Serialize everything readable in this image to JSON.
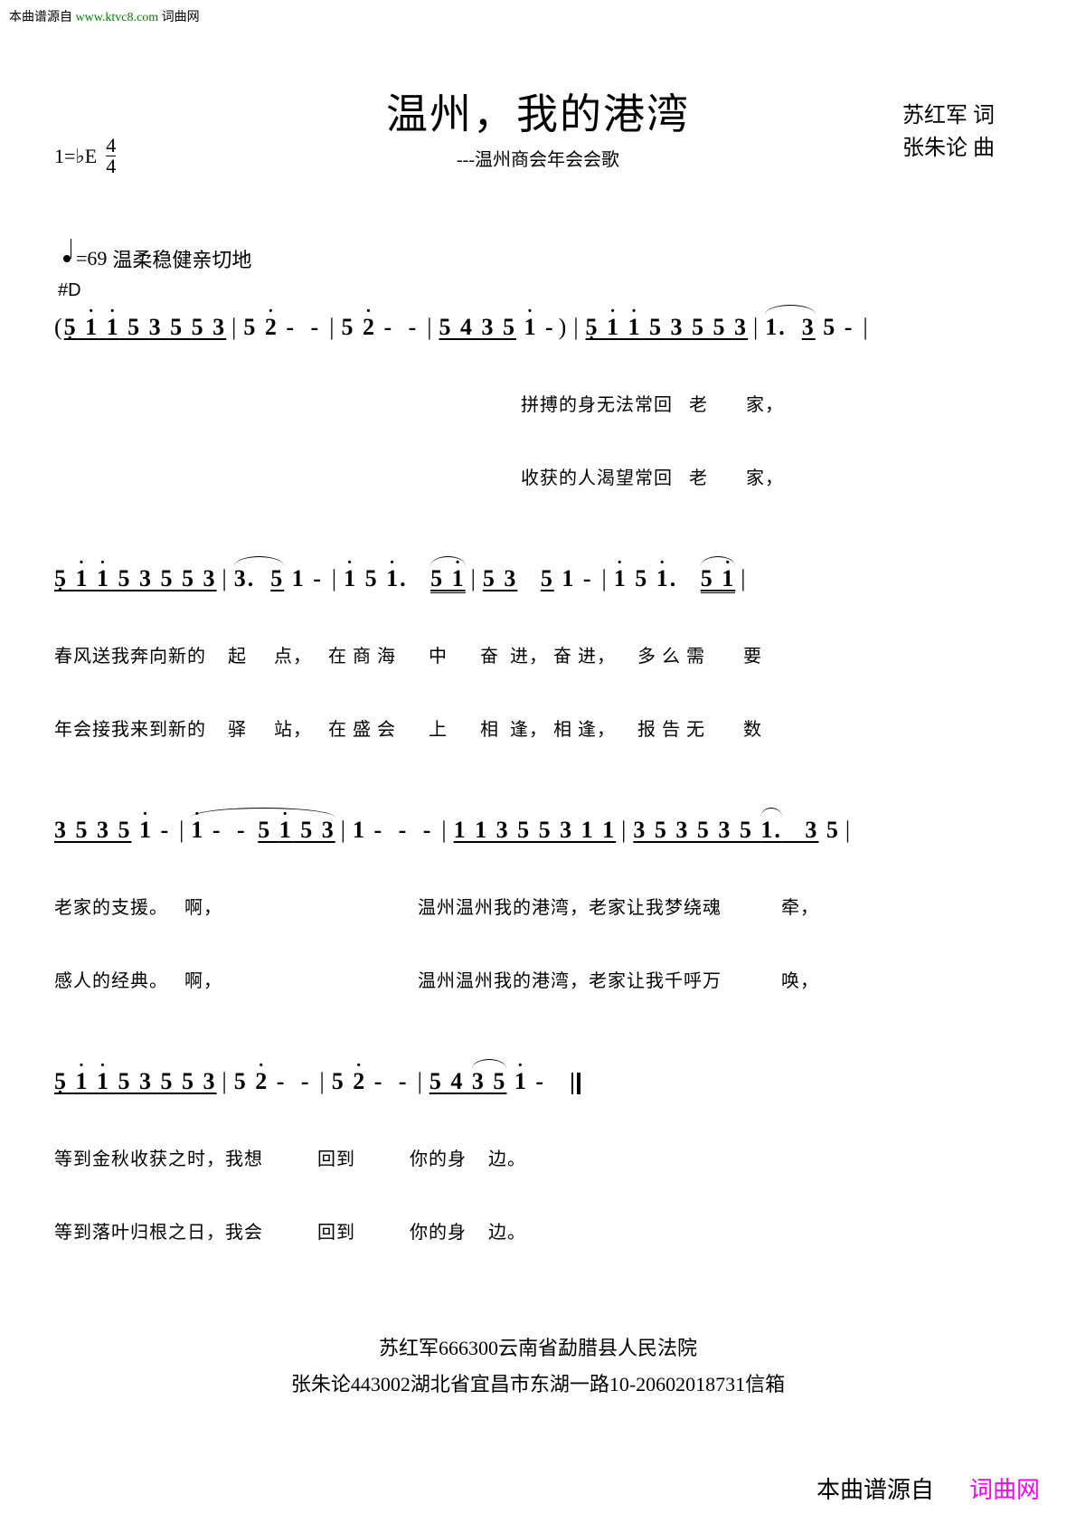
{
  "watermark_top": {
    "prefix": "本曲谱源自 ",
    "url": "www.ktvc8.com",
    "suffix": " 词曲网"
  },
  "watermark_bottom": {
    "prefix": "本曲谱源自",
    "site": "词曲网"
  },
  "title": "温州，我的港湾",
  "subtitle": "---温州商会年会会歌",
  "key": "1=♭E",
  "time_num": "4",
  "time_den": "4",
  "lyricist": "苏红军  词",
  "composer": "张朱论  曲",
  "tempo_value": "=69",
  "tempo_expr": "温柔稳健亲切地",
  "chord": "#D",
  "systems": [
    {
      "notation_html": "<span class='paren'>(</span><span class='u'><span class='dot-below'>5</span> <span class='dot-above'>1</span> <span class='dot-above'>1</span> 5 3 5 <span class='u'>5 3</span></span><span class='bar'>|</span>5 <span class='dot-above'>2</span> <span class='dash'>- -</span><span class='bar'>|</span>5 <span class='dot-above'>2</span> <span class='dash'>- -</span><span class='bar'>|</span><span class='u'>5 4 <span class='u'>3 5</span></span> <span class='dot-above'>1</span> <span class='dash'>-</span><span class='paren'>)</span><span class='bar'>|</span><span class='u'><span class='dot-below'>5</span> <span class='dot-above'>1</span> <span class='dot-above'>1</span> 5 3 5 <span class='u'>5 3</span></span><span class='bar'>|</span><span class='tie'>1.  <span class='u'>3</span></span> 5 <span class='dash'>-</span><span class='bar'>|</span>",
      "lyrics1": "                                                                                      拼搏的身无法常回   老       家，",
      "lyrics2": "                                                                                      收获的人渴望常回   老       家，"
    },
    {
      "notation_html": "<span class='u'><span class='dot-below'>5</span> <span class='dot-above'>1</span> <span class='dot-above'>1</span> 5 3 5 <span class='u'>5 3</span></span><span class='bar'>|</span><span class='tie'>3.  <span class='u'>5</span></span> 1 <span class='dash'>-</span><span class='bar'>|</span><span class='dot-above'>1</span> 5 <span class='dot-above'>1</span>.   <span class='tie'><span class='uu'>5 <span class='dot-above'>1</span></span></span><span class='bar'>|</span><span class='u'>5 3</span>   <span class='u'>5</span> 1 <span class='dash'>-</span><span class='bar'>|</span><span class='dot-above'>1</span> 5 <span class='dot-above'>1</span>.   <span class='tie'><span class='uu'>5 <span class='dot-above'>1</span></span></span><span class='bar'>|</span>",
      "lyrics1": "春风送我奔向新的    起     点，   在 商 海      中      奋  进， 奋 进，    多 么 需       要",
      "lyrics2": "年会接我来到新的    驿     站，   在 盛 会      上      相  逢， 相 逢，    报 告 无       数"
    },
    {
      "notation_html": "<span class='u'>3 5 <span class='u'>3 5</span></span> <span class='dot-above'>1</span> <span class='dash'>-</span><span class='bar'>|</span><span class='tie'><span class='dot-above'>1</span> <span class='dash'>- -</span> <span class='u'>5 <span class='dot-above'>1</span> 5 3</span></span><span class='bar'>|</span>1 <span class='dash'>- - -</span><span class='bar'>|</span><span class='u'>1 1 3 5 5 3 1 1</span><span class='bar'>|</span><span class='u'>3 5 3 5 3 5 <span class='tie'>1.</span>   <span class='u'>3</span></span> 5<span class='bar'>|</span>",
      "lyrics1": "老家的支援。   啊，                                    温州温州我的港湾，老家让我梦绕魂           牵，",
      "lyrics2": "感人的经典。   啊，                                    温州温州我的港湾，老家让我千呼万           唤，"
    },
    {
      "notation_html": "<span class='u'><span class='dot-below'>5</span> <span class='dot-above'>1</span> <span class='dot-above'>1</span> 5 3 5 <span class='u'>5 3</span></span><span class='bar'>|</span>5 <span class='dot-above'>2</span> <span class='dash'>- -</span><span class='bar'>|</span>5 <span class='dot-above'>2</span> <span class='dash'>- -</span><span class='bar'>|</span><span class='u'>5 4 <span class='tie'><span class='u'>3 5</span></span></span> <span class='dot-above'>1</span> <span class='dash'>-</span>  <span class='dbar'></span>",
      "lyrics1": "等到金秋收获之时，我想          回到          你的身    边。",
      "lyrics2": "等到落叶归根之日，我会          回到          你的身    边。"
    }
  ],
  "footer1": "苏红军666300云南省勐腊县人民法院",
  "footer2": "张朱论443002湖北省宜昌市东湖一路10-20602018731信箱"
}
